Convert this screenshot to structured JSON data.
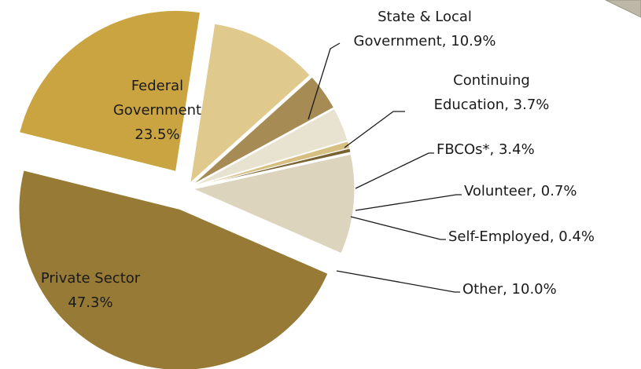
{
  "chart_data": {
    "type": "pie",
    "categories": [
      "Federal Government",
      "State & Local Government",
      "Continuing Education",
      "FBCOs*",
      "Volunteer",
      "Self-Employed",
      "Other",
      "Private Sector"
    ],
    "values": [
      23.5,
      10.9,
      3.7,
      3.4,
      0.7,
      0.4,
      10.0,
      47.3
    ],
    "value_labels": [
      "Federal\nGovernment\n23.5%",
      "State & Local\nGovernment, 10.9%",
      "Continuing\nEducation, 3.7%",
      "FBCOs*, 3.4%",
      "Volunteer, 0.7%",
      "Self-Employed, 0.4%",
      "Other, 10.0%",
      "Private Sector\n47.3%"
    ],
    "colors": [
      "#c9a441",
      "#dfc98c",
      "#a68b55",
      "#e8e2d0",
      "#d7bf82",
      "#7a6333",
      "#dcd4bd",
      "#967a35"
    ]
  }
}
